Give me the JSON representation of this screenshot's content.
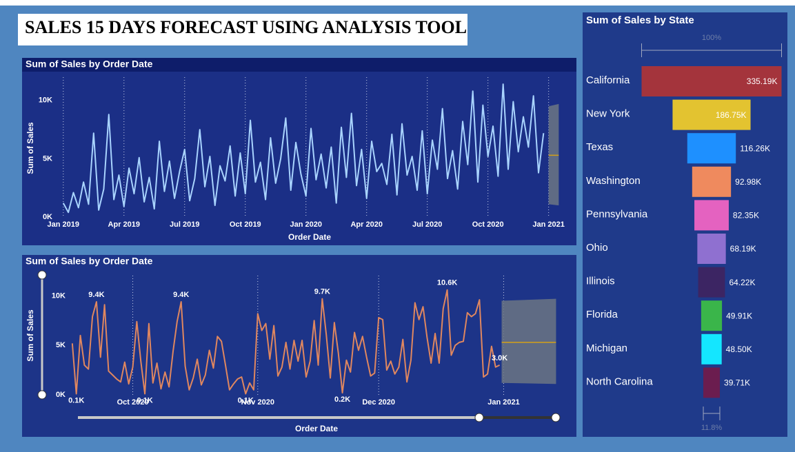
{
  "title": "SALES 15 DAYS FORECAST USING ANALYSIS TOOL",
  "chart_data": [
    {
      "type": "line",
      "title": "Sum of Sales by Order Date",
      "x_label": "Order Date",
      "y_label": "Sum of Sales",
      "color": "#a9d4ff",
      "x": [
        0,
        0.25,
        0.5,
        0.75,
        1,
        1.25,
        1.5,
        1.75,
        2,
        2.25,
        2.5,
        2.75,
        3,
        3.25,
        3.5,
        3.75,
        4,
        4.25,
        4.5,
        4.75,
        5,
        5.25,
        5.5,
        5.75,
        6,
        6.25,
        6.5,
        6.75,
        7,
        7.25,
        7.5,
        7.75,
        8,
        8.25,
        8.5,
        8.75,
        9,
        9.25,
        9.5,
        9.75,
        10,
        10.25,
        10.5,
        10.75,
        11,
        11.25,
        11.5,
        11.75,
        12,
        12.25,
        12.5,
        12.75,
        13,
        13.25,
        13.5,
        13.75,
        14,
        14.25,
        14.5,
        14.75,
        15,
        15.25,
        15.5,
        15.75,
        16,
        16.25,
        16.5,
        16.75,
        17,
        17.25,
        17.5,
        17.75,
        18,
        18.25,
        18.5,
        18.75,
        19,
        19.25,
        19.5,
        19.75,
        20,
        20.25,
        20.5,
        20.75,
        21,
        21.25,
        21.5,
        21.75,
        22,
        22.25,
        22.5,
        22.75,
        23,
        23.25,
        23.5,
        23.75
      ],
      "values": [
        1200,
        400,
        2100,
        800,
        3000,
        1100,
        7200,
        600,
        2400,
        8800,
        1500,
        3600,
        900,
        4200,
        2000,
        5100,
        1300,
        3400,
        700,
        6500,
        2200,
        4800,
        1600,
        3900,
        5800,
        1400,
        3300,
        7500,
        2600,
        5200,
        1000,
        4400,
        3100,
        6100,
        1800,
        5500,
        2000,
        8300,
        3000,
        4700,
        1500,
        6800,
        2900,
        5000,
        8500,
        2300,
        6400,
        3700,
        1800,
        7600,
        3200,
        5400,
        2500,
        6000,
        1200,
        7700,
        3400,
        8900,
        2700,
        5800,
        1600,
        6500,
        3900,
        4600,
        2800,
        7100,
        1900,
        8000,
        3600,
        5200,
        2300,
        7400,
        2000,
        6600,
        4100,
        9300,
        3300,
        5700,
        2400,
        8200,
        4500,
        10800,
        3000,
        9600,
        5200,
        7800,
        3500,
        11400,
        4100,
        9900,
        5600,
        8600,
        6000,
        10400,
        3800,
        7200
      ],
      "forecast": {
        "color": "#d4a017",
        "x": [
          24,
          24.5
        ],
        "values": [
          5300,
          5300
        ],
        "upper": [
          9500,
          9700
        ],
        "lower": [
          1100,
          1000
        ]
      },
      "xlim": [
        -0.3,
        25
      ],
      "ylim": [
        0,
        12000
      ],
      "xticks": [
        {
          "value": 0,
          "label": "Jan 2019"
        },
        {
          "value": 3,
          "label": "Apr 2019"
        },
        {
          "value": 6,
          "label": "Jul 2019"
        },
        {
          "value": 9,
          "label": "Oct 2019"
        },
        {
          "value": 12,
          "label": "Jan 2020"
        },
        {
          "value": 15,
          "label": "Apr 2020"
        },
        {
          "value": 18,
          "label": "Jul 2020"
        },
        {
          "value": 21,
          "label": "Oct 2020"
        },
        {
          "value": 24,
          "label": "Jan 2021"
        }
      ],
      "yticks": [
        {
          "value": 0,
          "label": "0K"
        },
        {
          "value": 5000,
          "label": "5K"
        },
        {
          "value": 10000,
          "label": "10K"
        }
      ]
    },
    {
      "type": "line",
      "title": "Sum of Sales by Order Date",
      "x_label": "Order Date",
      "y_label": "Sum of Sales",
      "color": "#e0875f",
      "x": [
        0,
        1,
        2,
        3,
        4,
        5,
        6,
        7,
        8,
        9,
        10,
        11,
        12,
        13,
        14,
        15,
        16,
        17,
        18,
        19,
        20,
        21,
        22,
        23,
        24,
        25,
        26,
        27,
        28,
        29,
        30,
        31,
        32,
        33,
        34,
        35,
        36,
        37,
        38,
        39,
        40,
        41,
        42,
        43,
        44,
        45,
        46,
        47,
        48,
        49,
        50,
        51,
        52,
        53,
        54,
        55,
        56,
        57,
        58,
        59,
        60,
        61,
        62,
        63,
        64,
        65,
        66,
        67,
        68,
        69,
        70,
        71,
        72,
        73,
        74,
        75,
        76,
        77,
        78,
        79,
        80,
        81,
        82,
        83,
        84,
        85,
        86,
        87,
        88,
        89,
        90,
        91,
        92,
        93,
        94,
        95,
        96,
        97,
        98,
        99,
        100,
        101,
        102,
        103,
        104,
        105,
        106
      ],
      "values": [
        5200,
        100,
        6000,
        3000,
        2600,
        7900,
        9400,
        3800,
        9100,
        2400,
        2000,
        1600,
        1300,
        3300,
        1100,
        2800,
        7400,
        3400,
        100,
        7200,
        1200,
        3200,
        600,
        2300,
        800,
        4400,
        7400,
        9400,
        2900,
        500,
        1700,
        3600,
        1000,
        2000,
        4500,
        2700,
        5900,
        5400,
        3000,
        500,
        1100,
        1600,
        1800,
        100,
        1200,
        500,
        8200,
        6500,
        7200,
        3600,
        7000,
        1900,
        2800,
        5300,
        2600,
        5500,
        3400,
        5500,
        1800,
        3400,
        7500,
        3000,
        9700,
        6100,
        1700,
        7300,
        4200,
        200,
        3500,
        2300,
        6300,
        4500,
        5900,
        3800,
        1900,
        2200,
        7800,
        7600,
        2500,
        3400,
        2100,
        2800,
        5600,
        1300,
        3500,
        9300,
        7600,
        8900,
        5800,
        3200,
        6200,
        3200,
        8700,
        10600,
        4000,
        5000,
        5300,
        5400,
        8300,
        7900,
        8200,
        9600,
        1800,
        2100,
        4900,
        2800,
        3000
      ],
      "value_labels": [
        null,
        "0.1K",
        null,
        null,
        null,
        null,
        "9.4K",
        null,
        null,
        null,
        null,
        null,
        null,
        null,
        null,
        null,
        null,
        null,
        "0.1K",
        null,
        null,
        null,
        null,
        null,
        null,
        null,
        null,
        "9.4K",
        null,
        null,
        null,
        null,
        null,
        null,
        null,
        null,
        null,
        null,
        null,
        null,
        null,
        null,
        null,
        "0.1K",
        null,
        null,
        null,
        null,
        null,
        null,
        null,
        null,
        null,
        null,
        null,
        null,
        null,
        null,
        null,
        null,
        null,
        null,
        "9.7K",
        null,
        null,
        null,
        null,
        "0.2K",
        null,
        null,
        null,
        null,
        null,
        null,
        null,
        null,
        null,
        null,
        null,
        null,
        null,
        null,
        null,
        null,
        null,
        null,
        null,
        null,
        null,
        null,
        null,
        null,
        null,
        "10.6K",
        null,
        null,
        null,
        null,
        null,
        null,
        null,
        null,
        null,
        null,
        null,
        null,
        "3.0K"
      ],
      "forecast": {
        "color": "#d4a017",
        "x": [
          106.5,
          120
        ],
        "values": [
          5300,
          5300
        ],
        "upper": [
          9500,
          9700
        ],
        "lower": [
          1200,
          1100
        ]
      },
      "xlim": [
        -1,
        123
      ],
      "ylim": [
        0,
        11000
      ],
      "xticks": [
        {
          "value": 15,
          "label": "Oct 2020"
        },
        {
          "value": 46,
          "label": "Nov 2020"
        },
        {
          "value": 76,
          "label": "Dec 2020"
        },
        {
          "value": 107,
          "label": "Jan 2021"
        }
      ],
      "yticks": [
        {
          "value": 0,
          "label": "0K"
        },
        {
          "value": 5000,
          "label": "5K"
        },
        {
          "value": 10000,
          "label": "10K"
        }
      ]
    },
    {
      "type": "funnel",
      "title": "Sum of Sales by State",
      "categories": [
        "California",
        "New York",
        "Texas",
        "Washington",
        "Pennsylvania",
        "Ohio",
        "Illinois",
        "Florida",
        "Michigan",
        "North Carolina"
      ],
      "values": [
        335190,
        186750,
        116260,
        92980,
        82350,
        68190,
        64220,
        49910,
        48500,
        39710
      ],
      "value_labels": [
        "335.19K",
        "186.75K",
        "116.26K",
        "92.98K",
        "82.35K",
        "68.19K",
        "64.22K",
        "49.91K",
        "48.50K",
        "39.71K"
      ],
      "colors": [
        "#a4343c",
        "#e3c330",
        "#1e90ff",
        "#ef8a5e",
        "#e462c0",
        "#8f70d0",
        "#3c2563",
        "#3ab54a",
        "#14e6ff",
        "#6b1d4f"
      ],
      "conversion_labels": [
        {
          "value": 100,
          "label": "100%"
        },
        {
          "value": 11.8,
          "label": "11.8%"
        }
      ]
    }
  ]
}
